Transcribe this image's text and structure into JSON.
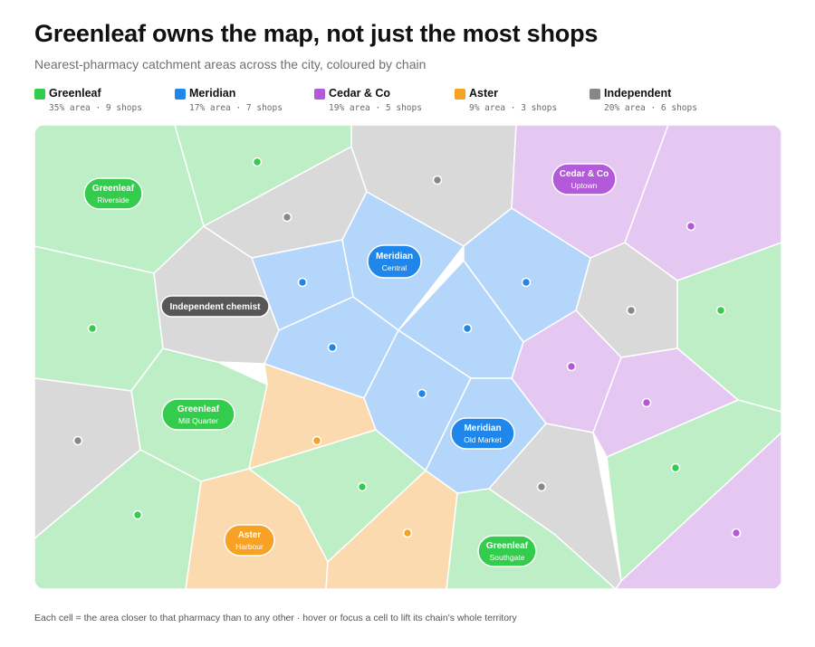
{
  "title": "Greenleaf owns the map, not just the most shops",
  "subtitle": "Nearest-pharmacy catchment areas across the city, coloured by chain",
  "footnote": "Each cell = the area closer to that pharmacy than to any other · hover or focus a cell to lift its chain's whole territory",
  "chains": {
    "greenleaf": {
      "name": "Greenleaf",
      "stats": "35% area · 9 shops",
      "color": "#33cc4d",
      "fill": "#bdeec6"
    },
    "meridian": {
      "name": "Meridian",
      "stats": "17% area · 7 shops",
      "color": "#1f86ec",
      "fill": "#b4d6fb"
    },
    "cedar": {
      "name": "Cedar & Co",
      "stats": "19% area · 5 shops",
      "color": "#b25ad9",
      "fill": "#e4c8f1"
    },
    "aster": {
      "name": "Aster",
      "stats": "9% area · 3 shops",
      "color": "#f7a125",
      "fill": "#fcdab0"
    },
    "independent": {
      "name": "Independent",
      "stats": "20% area · 6 shops",
      "color": "#888888",
      "fill": "#d9d9d9"
    }
  },
  "labels": {
    "greenleaf_riverside": {
      "name": "Greenleaf",
      "sub": "Riverside"
    },
    "greenleaf_millquarter": {
      "name": "Greenleaf",
      "sub": "Mill Quarter"
    },
    "greenleaf_southgate": {
      "name": "Greenleaf",
      "sub": "Southgate"
    },
    "meridian_central": {
      "name": "Meridian",
      "sub": "Central"
    },
    "meridian_oldmarket": {
      "name": "Meridian",
      "sub": "Old Market"
    },
    "cedar_uptown": {
      "name": "Cedar & Co",
      "sub": "Uptown"
    },
    "aster_harbour": {
      "name": "Aster",
      "sub": "Harbour"
    },
    "independent_chemist": {
      "name": "Independent chemist"
    }
  }
}
